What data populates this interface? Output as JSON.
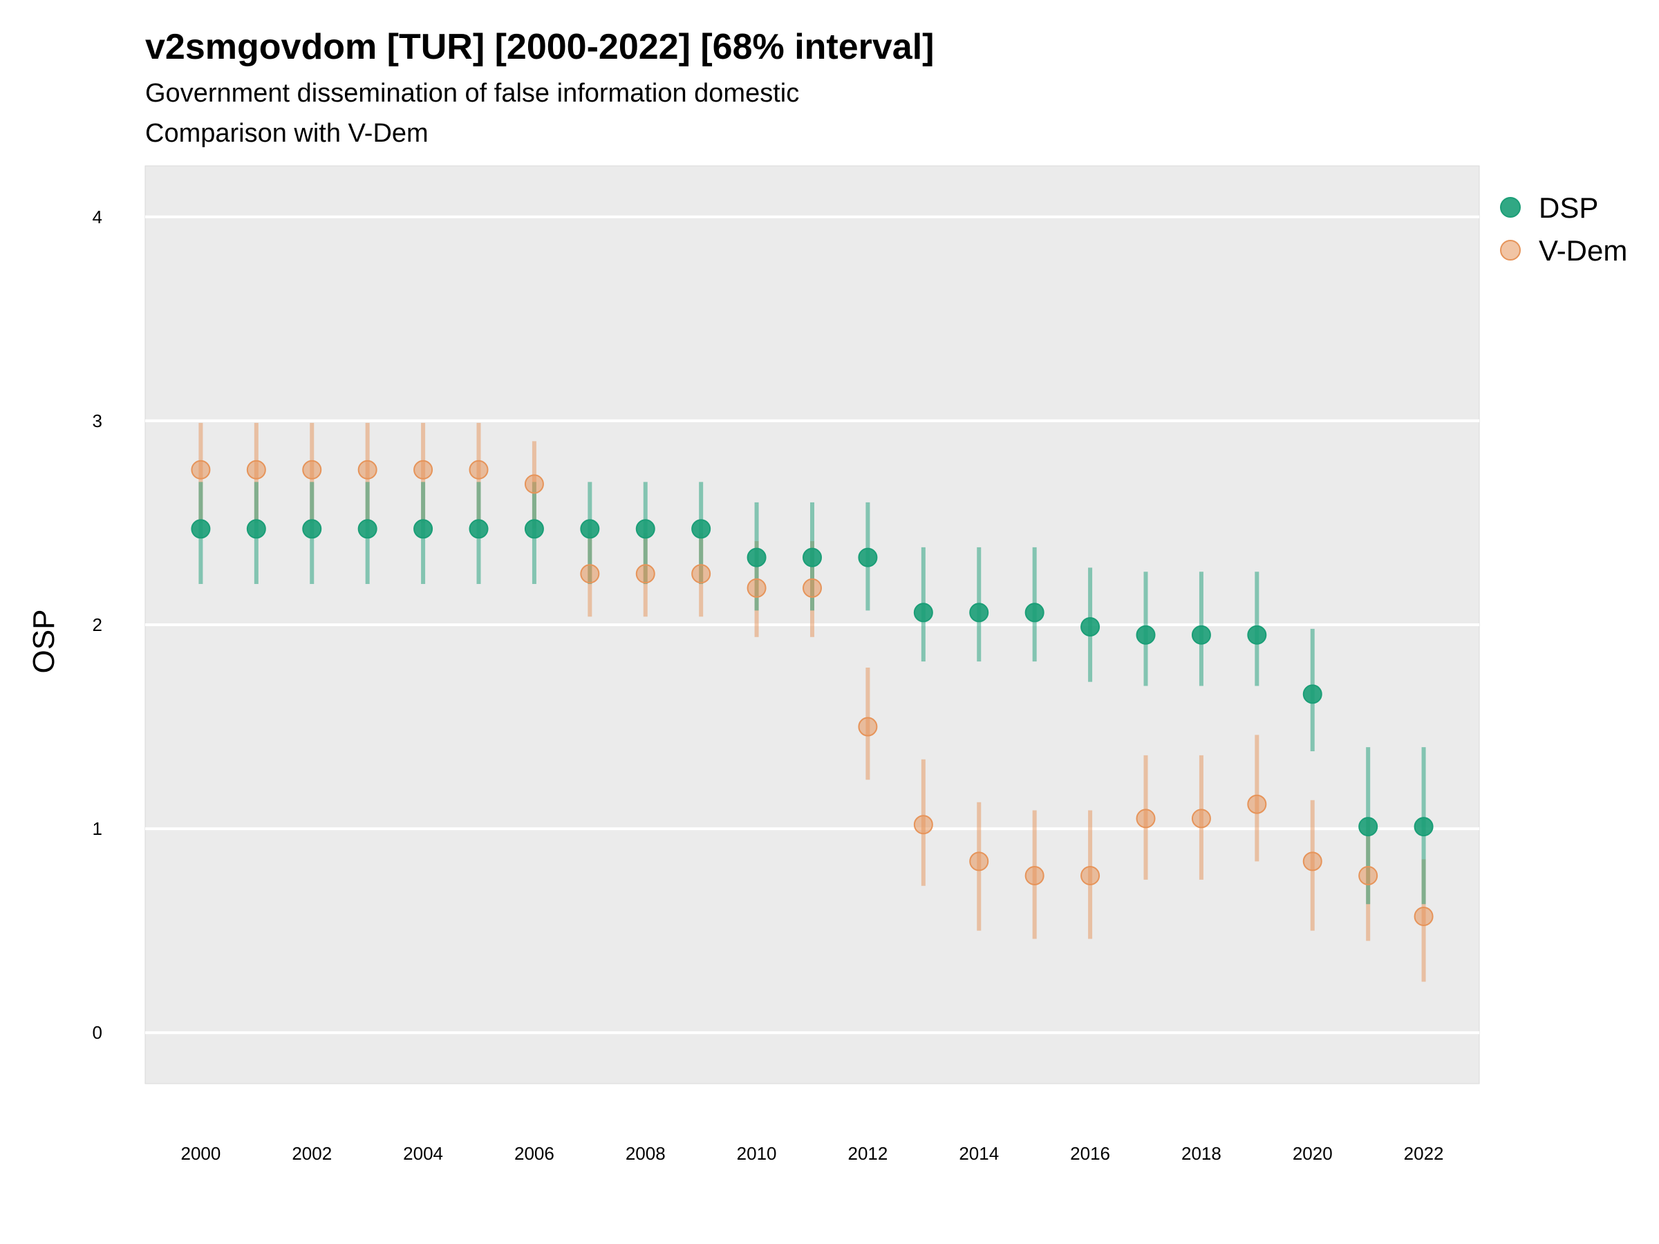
{
  "chart_data": {
    "type": "scatter",
    "title": "v2smgovdom [TUR] [2000-2022] [68% interval]",
    "subtitle": "Government dissemination of false information domestic",
    "subtitle2": "Comparison with V-Dem",
    "ylabel": "OSP",
    "xlabel": "",
    "ylim": [
      -0.25,
      4.25
    ],
    "yticks": [
      0,
      1,
      2,
      3,
      4
    ],
    "xticks": [
      2000,
      2002,
      2004,
      2006,
      2008,
      2010,
      2012,
      2014,
      2016,
      2018,
      2020,
      2022
    ],
    "grid": true,
    "legend_position": "right",
    "x": [
      2000,
      2001,
      2002,
      2003,
      2004,
      2005,
      2006,
      2007,
      2008,
      2009,
      2010,
      2011,
      2012,
      2013,
      2014,
      2015,
      2016,
      2017,
      2018,
      2019,
      2020,
      2021,
      2022
    ],
    "series": [
      {
        "name": "DSP",
        "color": "#1b9e77",
        "values": [
          2.47,
          2.47,
          2.47,
          2.47,
          2.47,
          2.47,
          2.47,
          2.47,
          2.47,
          2.47,
          2.33,
          2.33,
          2.33,
          2.06,
          2.06,
          2.06,
          1.99,
          1.95,
          1.95,
          1.95,
          1.66,
          1.01,
          1.01
        ],
        "lower": [
          2.2,
          2.2,
          2.2,
          2.2,
          2.2,
          2.2,
          2.2,
          2.2,
          2.2,
          2.2,
          2.07,
          2.07,
          2.07,
          1.82,
          1.82,
          1.82,
          1.72,
          1.7,
          1.7,
          1.7,
          1.38,
          0.63,
          0.63
        ],
        "upper": [
          2.7,
          2.7,
          2.7,
          2.7,
          2.7,
          2.7,
          2.7,
          2.7,
          2.7,
          2.7,
          2.6,
          2.6,
          2.6,
          2.38,
          2.38,
          2.38,
          2.28,
          2.26,
          2.26,
          2.26,
          1.98,
          1.4,
          1.4
        ]
      },
      {
        "name": "V-Dem",
        "color": "#e6945a",
        "values": [
          2.76,
          2.76,
          2.76,
          2.76,
          2.76,
          2.76,
          2.69,
          2.25,
          2.25,
          2.25,
          2.18,
          2.18,
          1.5,
          1.02,
          0.84,
          0.77,
          0.77,
          1.05,
          1.05,
          1.12,
          0.84,
          0.77,
          0.57
        ],
        "lower": [
          2.5,
          2.5,
          2.5,
          2.5,
          2.5,
          2.5,
          2.47,
          2.04,
          2.04,
          2.04,
          1.94,
          1.94,
          1.24,
          0.72,
          0.5,
          0.46,
          0.46,
          0.75,
          0.75,
          0.84,
          0.5,
          0.45,
          0.25
        ],
        "upper": [
          2.99,
          2.99,
          2.99,
          2.99,
          2.99,
          2.99,
          2.9,
          2.45,
          2.45,
          2.45,
          2.41,
          2.41,
          1.79,
          1.34,
          1.13,
          1.09,
          1.09,
          1.36,
          1.36,
          1.46,
          1.14,
          1.05,
          0.85
        ]
      }
    ]
  }
}
